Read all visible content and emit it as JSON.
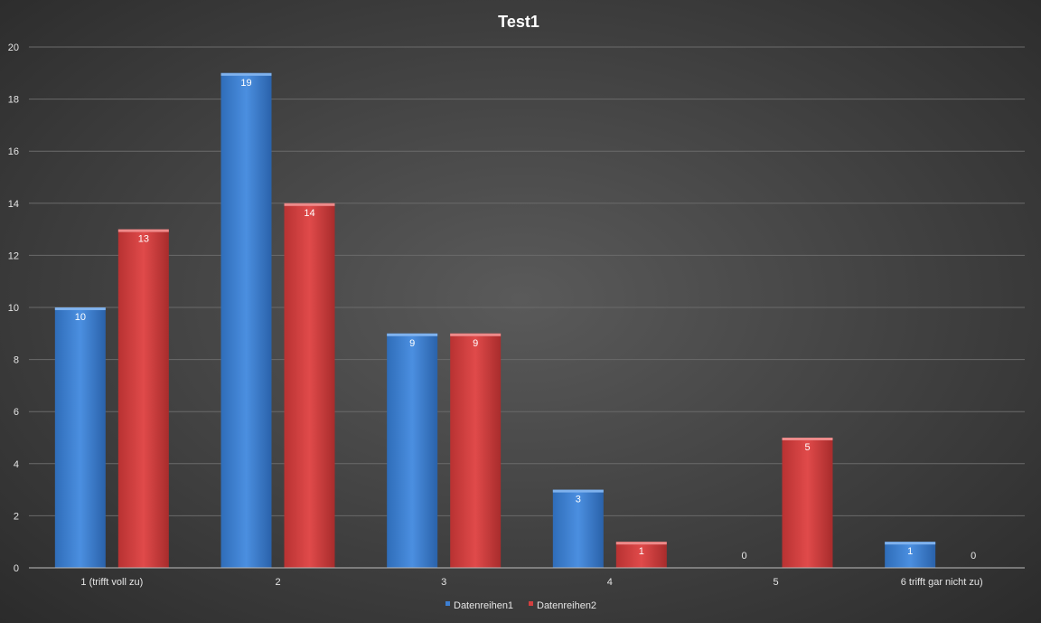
{
  "chart_data": {
    "type": "bar",
    "title": "Test1",
    "xlabel": "",
    "ylabel": "",
    "categories": [
      "1 (trifft voll zu)",
      "2",
      "3",
      "4",
      "5",
      "6 trifft gar nicht zu)"
    ],
    "series": [
      {
        "name": "Datenreihen1",
        "color": "#3d7fd2",
        "values": [
          10,
          19,
          9,
          3,
          0,
          1
        ]
      },
      {
        "name": "Datenreihen2",
        "color": "#d43f3f",
        "values": [
          13,
          14,
          9,
          1,
          5,
          0
        ]
      }
    ],
    "ylim": [
      0,
      20
    ],
    "yticks": [
      0,
      2,
      4,
      6,
      8,
      10,
      12,
      14,
      16,
      18,
      20
    ],
    "grid": true,
    "legend_position": "bottom",
    "data_labels": true
  }
}
